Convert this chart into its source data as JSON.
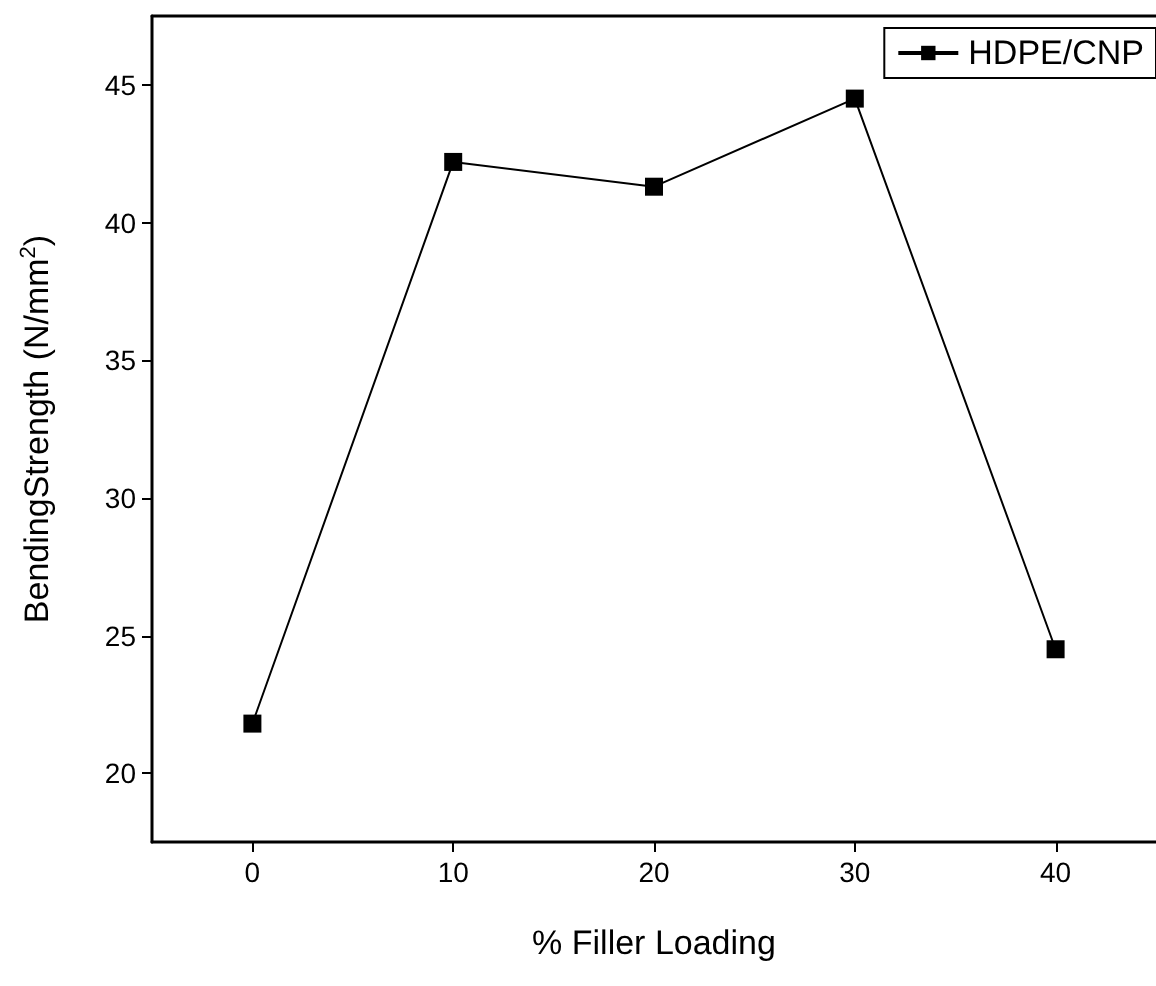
{
  "chart_data": {
    "type": "line",
    "xlabel": "% Filler Loading",
    "ylabel": "BendingStrength (N/mm$^{2}$)",
    "x": [
      0,
      10,
      20,
      30,
      40
    ],
    "series": [
      {
        "name": "HDPE/CNP",
        "color": "#000000",
        "values": [
          21.8,
          42.2,
          41.3,
          44.5,
          24.5
        ]
      }
    ],
    "xlim": [
      -5,
      45
    ],
    "xticks": [
      0,
      10,
      20,
      30,
      40
    ],
    "ylim": [
      17.5,
      47.5
    ],
    "yticks": [
      20,
      25,
      30,
      35,
      40,
      45
    ],
    "marker": "square",
    "line_style": "solid",
    "legend": "top right",
    "grid": false
  }
}
